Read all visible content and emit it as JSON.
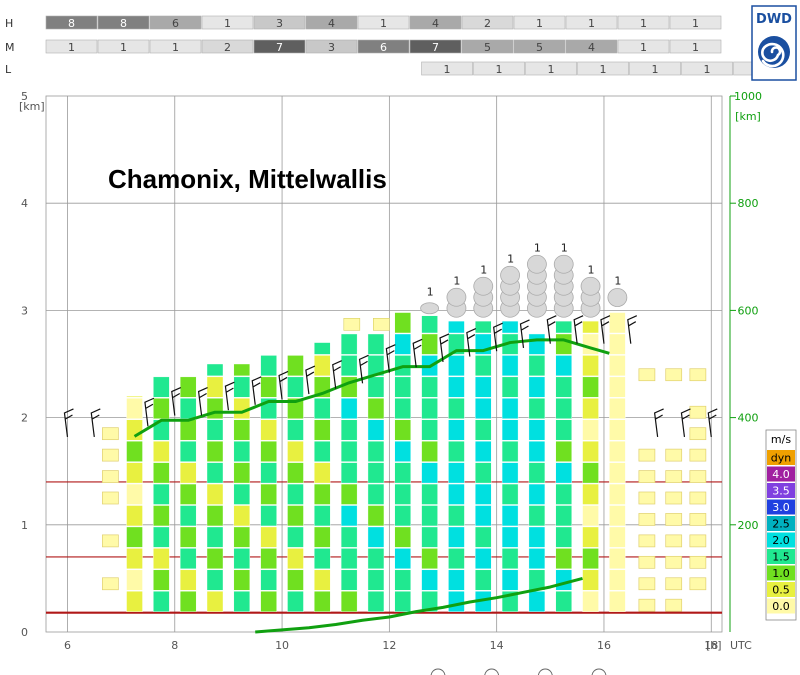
{
  "chart_data": {
    "type": "bar",
    "title": "Chamonix, Mittelwallis",
    "logo_text": "DWD",
    "x_axis": {
      "ticks": [
        "6",
        "8",
        "10",
        "12",
        "14",
        "16",
        "18"
      ],
      "unit": "[h]",
      "suffix": "UTC",
      "range": [
        5.6,
        18.2
      ]
    },
    "y_left": {
      "ticks": [
        "0",
        "1",
        "2",
        "3",
        "4",
        "5"
      ],
      "unit": "[km]",
      "range": [
        0,
        5
      ]
    },
    "y_right": {
      "ticks": [
        "200",
        "400",
        "600",
        "800",
        "1000"
      ],
      "unit": "[km]",
      "range": [
        0,
        1000
      ]
    },
    "cloud_rows": [
      {
        "label": "H",
        "start": 5.6,
        "values": [
          "8",
          "8",
          "6",
          "1",
          "3",
          "4",
          "1",
          "4",
          "2",
          "1",
          "1",
          "1",
          "1"
        ],
        "shades": [
          "#808080",
          "#808080",
          "#a9a9a9",
          "#e6e6e6",
          "#c8c8c8",
          "#a9a9a9",
          "#e6e6e6",
          "#a9a9a9",
          "#d9d9d9",
          "#e6e6e6",
          "#e6e6e6",
          "#e6e6e6",
          "#e6e6e6"
        ]
      },
      {
        "label": "M",
        "start": 5.6,
        "values": [
          "1",
          "1",
          "1",
          "2",
          "7",
          "3",
          "6",
          "7",
          "5",
          "5",
          "4",
          "1",
          "1"
        ],
        "shades": [
          "#e6e6e6",
          "#e6e6e6",
          "#e6e6e6",
          "#d9d9d9",
          "#5f5f5f",
          "#c8c8c8",
          "#808080",
          "#5f5f5f",
          "#a9a9a9",
          "#a9a9a9",
          "#a9a9a9",
          "#e6e6e6",
          "#e6e6e6"
        ]
      },
      {
        "label": "L",
        "start": 12.6,
        "values": [
          "1",
          "1",
          "1",
          "1",
          "1",
          "1",
          "1"
        ],
        "shades": [
          "#e6e6e6",
          "#e6e6e6",
          "#e6e6e6",
          "#e6e6e6",
          "#e6e6e6",
          "#e6e6e6",
          "#e6e6e6"
        ]
      }
    ],
    "legend": {
      "title": "m/s",
      "entries": [
        {
          "label": "dyn",
          "color": "#f0a000"
        },
        {
          "label": "4.0",
          "color": "#a020a0"
        },
        {
          "label": "3.5",
          "color": "#8040e0"
        },
        {
          "label": "3.0",
          "color": "#2040e0"
        },
        {
          "label": "2.5",
          "color": "#00b0c0"
        },
        {
          "label": "2.0",
          "color": "#00e0e0"
        },
        {
          "label": "1.5",
          "color": "#20e890"
        },
        {
          "label": "1.0",
          "color": "#70e020"
        },
        {
          "label": "0.5",
          "color": "#e8f040"
        },
        {
          "label": "0.0",
          "color": "#fffaa8"
        }
      ]
    },
    "reference_lines_km": [
      0.18,
      0.7,
      1.4
    ],
    "thermal_columns": [
      {
        "x": 7.25,
        "top_km": 2.2,
        "w": "yellow"
      },
      {
        "x": 7.75,
        "top_km": 2.4,
        "w": "green"
      },
      {
        "x": 8.25,
        "top_km": 2.4,
        "w": "green"
      },
      {
        "x": 8.75,
        "top_km": 2.5,
        "w": "green"
      },
      {
        "x": 9.25,
        "top_km": 2.5,
        "w": "green"
      },
      {
        "x": 9.75,
        "top_km": 2.6,
        "w": "green"
      },
      {
        "x": 10.25,
        "top_km": 2.6,
        "w": "green"
      },
      {
        "x": 10.75,
        "top_km": 2.7,
        "w": "green"
      },
      {
        "x": 11.25,
        "top_km": 2.8,
        "w": "mix"
      },
      {
        "x": 11.75,
        "top_km": 2.8,
        "w": "mix"
      },
      {
        "x": 12.25,
        "top_km": 3.0,
        "w": "mix"
      },
      {
        "x": 12.75,
        "top_km": 2.95,
        "w": "mix"
      },
      {
        "x": 13.25,
        "top_km": 2.9,
        "w": "cyan"
      },
      {
        "x": 13.75,
        "top_km": 2.9,
        "w": "cyan"
      },
      {
        "x": 14.25,
        "top_km": 2.9,
        "w": "cyan"
      },
      {
        "x": 14.75,
        "top_km": 2.8,
        "w": "cyan"
      },
      {
        "x": 15.25,
        "top_km": 2.9,
        "w": "mix"
      },
      {
        "x": 15.75,
        "top_km": 2.9,
        "w": "yellow"
      },
      {
        "x": 16.25,
        "top_km": 3.0,
        "w": "pale"
      }
    ],
    "sparse_columns": [
      {
        "x": 6.8,
        "cells_km": [
          0.45,
          0.85,
          1.25,
          1.45,
          1.65,
          1.85
        ]
      },
      {
        "x": 16.8,
        "cells_km": [
          0.25,
          0.45,
          0.65,
          0.85,
          1.05,
          1.25,
          1.45,
          1.65,
          2.4
        ]
      },
      {
        "x": 17.3,
        "cells_km": [
          0.25,
          0.45,
          0.65,
          0.85,
          1.05,
          1.25,
          1.45,
          1.65,
          2.4
        ]
      },
      {
        "x": 17.75,
        "cells_km": [
          0.45,
          0.65,
          0.85,
          1.05,
          1.25,
          1.45,
          1.65,
          1.85,
          2.05,
          2.4
        ]
      }
    ],
    "extra_cells": [
      {
        "x": 11.3,
        "y_km": 2.87,
        "color": "#fffaa8"
      },
      {
        "x": 11.85,
        "y_km": 2.87,
        "color": "#fffaa8"
      }
    ],
    "cumulus": [
      {
        "x": 12.75,
        "count": 1,
        "label": "1"
      },
      {
        "x": 13.25,
        "count": 2,
        "label": "1"
      },
      {
        "x": 13.75,
        "count": 3,
        "label": "1"
      },
      {
        "x": 14.25,
        "count": 4,
        "label": "1"
      },
      {
        "x": 14.75,
        "count": 5,
        "label": "1"
      },
      {
        "x": 15.25,
        "count": 5,
        "label": "1"
      },
      {
        "x": 15.75,
        "count": 3,
        "label": "1"
      },
      {
        "x": 16.25,
        "count": 1,
        "label": "1"
      }
    ],
    "series": [
      {
        "name": "",
        "axis": "right",
        "x": [
          7.25,
          7.75,
          8.25,
          8.75,
          9.25,
          9.75,
          10.25,
          10.75,
          11.25,
          11.75,
          12.25,
          12.75,
          13.25,
          13.75,
          14.25,
          14.75,
          15.25,
          15.75,
          16.1
        ],
        "y": [
          365,
          395,
          395,
          410,
          410,
          430,
          430,
          445,
          465,
          480,
          495,
          495,
          525,
          525,
          540,
          545,
          545,
          530,
          520
        ]
      },
      {
        "name": "",
        "axis": "left",
        "x": [
          9.5,
          10.0,
          10.5,
          11.0,
          11.5,
          12.0,
          12.5,
          13.0,
          13.5,
          14.0,
          14.5,
          15.0,
          15.6
        ],
        "y": [
          0.0,
          0.02,
          0.04,
          0.07,
          0.11,
          0.14,
          0.19,
          0.23,
          0.28,
          0.32,
          0.37,
          0.42,
          0.5
        ]
      }
    ],
    "wind_barbs": [
      {
        "x": 6.0,
        "y_km": 1.95
      },
      {
        "x": 6.5,
        "y_km": 1.95
      },
      {
        "x": 7.5,
        "y_km": 2.05
      },
      {
        "x": 8.0,
        "y_km": 2.15
      },
      {
        "x": 8.5,
        "y_km": 2.15
      },
      {
        "x": 9.0,
        "y_km": 2.2
      },
      {
        "x": 9.5,
        "y_km": 2.25
      },
      {
        "x": 10.0,
        "y_km": 2.3
      },
      {
        "x": 10.5,
        "y_km": 2.35
      },
      {
        "x": 11.0,
        "y_km": 2.4
      },
      {
        "x": 11.5,
        "y_km": 2.45
      },
      {
        "x": 12.0,
        "y_km": 2.55
      },
      {
        "x": 12.5,
        "y_km": 2.6
      },
      {
        "x": 13.0,
        "y_km": 2.65
      },
      {
        "x": 13.5,
        "y_km": 2.7
      },
      {
        "x": 14.0,
        "y_km": 2.75
      },
      {
        "x": 14.5,
        "y_km": 2.78
      },
      {
        "x": 15.0,
        "y_km": 2.82
      },
      {
        "x": 15.5,
        "y_km": 2.82
      },
      {
        "x": 16.0,
        "y_km": 2.82
      },
      {
        "x": 16.5,
        "y_km": 2.82
      },
      {
        "x": 17.0,
        "y_km": 1.95
      },
      {
        "x": 17.5,
        "y_km": 1.95
      },
      {
        "x": 18.0,
        "y_km": 1.95
      }
    ],
    "bottom_markers_x": [
      13.0,
      14.0,
      15.0,
      16.0
    ]
  }
}
